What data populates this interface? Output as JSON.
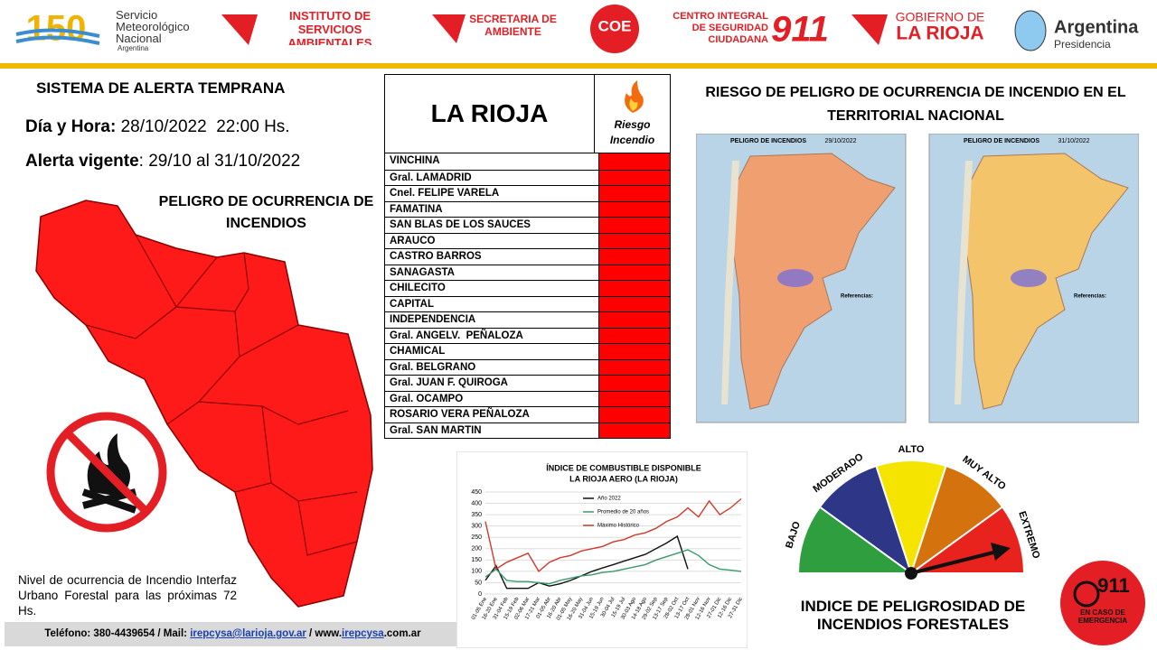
{
  "header": {
    "smn_number": "150",
    "smn_name": "Servicio Meteorológico Nacional",
    "smn_country": "Argentina",
    "isa": "INSTITUTO DE SERVICIOS AMBIENTALES",
    "secretaria": "SECRETARIA DE AMBIENTE",
    "coe": "COE",
    "centro": "CENTRO INTEGRAL DE SEGURIDAD CIUDADANA",
    "centro_number": "911",
    "gobierno": "GOBIERNO DE",
    "gobierno_province": "LA RIOJA",
    "presidencia_country": "Argentina",
    "presidencia": "Presidencia"
  },
  "alert": {
    "title": "SISTEMA DE ALERTA TEMPRANA",
    "date_label": "Día y Hora:",
    "date_value": "28/10/2022  22:00 Hs.",
    "validity_label": "Alerta vigente",
    "validity_value": ": 29/10 al 31/10/2022",
    "danger_title": "PELIGRO DE OCURRENCIA DE INCENDIOS",
    "note": "Nivel de ocurrencia de Incendio Interfaz Urbano Forestal para las próximas 72 Hs."
  },
  "table": {
    "title": "LA RIOJA",
    "risk_header": "Riesgo Incendio",
    "risk_color": "#ff0000",
    "departments": [
      "VINCHINA",
      "Gral. LAMADRID",
      "Cnel. FELIPE VARELA",
      "FAMATINA",
      "SAN BLAS DE LOS SAUCES",
      "ARAUCO",
      "CASTRO BARROS",
      "SANAGASTA",
      "CHILECITO",
      "CAPITAL",
      "INDEPENDENCIA",
      "Gral. ANGELV.  PEÑALOZA",
      "CHAMICAL",
      "Gral. BELGRANO",
      "Gral. JUAN F. QUIROGA",
      "Gral. OCAMPO",
      "ROSARIO VERA PEÑALOZA",
      "Gral. SAN MARTIN"
    ]
  },
  "maps": {
    "title": "RIESGO DE PELIGRO DE OCURRENCIA DE INCENDIO EN EL TERRITORIAL NACIONAL",
    "panels": [
      {
        "title": "PELIGRO DE INCENDIOS",
        "date": "29/10/2022",
        "legend": "Referencias:"
      },
      {
        "title": "PELIGRO DE INCENDIOS",
        "date": "31/10/2022",
        "legend": "Referencias:"
      }
    ]
  },
  "chart_data": {
    "type": "line",
    "title": "ÍNDICE DE COMBUSTIBLE DISPONIBLE",
    "subtitle": "LA RIOJA AERO (LA RIOJA)",
    "categories": [
      "01-05 Ene",
      "16-20 Ene",
      "31-04 Feb",
      "15-19 Feb",
      "02-06 Mar",
      "17-21 Mar",
      "01-05 Abr",
      "16-20 Abr",
      "01-05 May",
      "16-20 May",
      "31-04 Jun",
      "15-19 Jun",
      "30-04 Jul",
      "15-19 Jul",
      "30-03 Ago",
      "14-18 Ago",
      "29-02 Sep",
      "13-17 Sep",
      "28-02 Oct",
      "13-17 Oct",
      "28-01 Nov",
      "12-16 Nov",
      "27-01 Dic",
      "12-16 Dic",
      "27-31 Dic"
    ],
    "series": [
      {
        "name": "Año 2022",
        "color": "#111111",
        "values": [
          60,
          125,
          25,
          25,
          25,
          50,
          35,
          45,
          60,
          80,
          100,
          115,
          130,
          145,
          160,
          175,
          200,
          225,
          255,
          110,
          null,
          null,
          null,
          null,
          null
        ]
      },
      {
        "name": "Promedio de 20 años",
        "color": "#3a9a6a",
        "values": [
          75,
          110,
          60,
          55,
          55,
          50,
          45,
          60,
          70,
          80,
          85,
          95,
          100,
          110,
          120,
          130,
          150,
          165,
          180,
          195,
          170,
          130,
          110,
          105,
          100
        ]
      },
      {
        "name": "Máximo Histórico",
        "color": "#d03a2a",
        "values": [
          320,
          110,
          140,
          160,
          180,
          100,
          140,
          160,
          170,
          190,
          200,
          210,
          230,
          240,
          260,
          270,
          290,
          320,
          340,
          380,
          340,
          410,
          350,
          380,
          420
        ]
      }
    ],
    "ylim": [
      0,
      450
    ],
    "yticks": [
      0,
      50,
      100,
      150,
      200,
      250,
      300,
      350,
      400,
      450
    ],
    "grid": true
  },
  "gauge": {
    "levels": [
      {
        "label": "BAJO",
        "color": "#2e9e3e"
      },
      {
        "label": "MODERADO",
        "color": "#2e3688"
      },
      {
        "label": "ALTO",
        "color": "#f4e400"
      },
      {
        "label": "MUY ALTO",
        "color": "#d4720e"
      },
      {
        "label": "EXTREMO",
        "color": "#e8221c"
      }
    ],
    "title": "INDICE DE PELIGROSIDAD DE INCENDIOS FORESTALES"
  },
  "badge": {
    "number": "911",
    "text": "EN CASO DE EMERGENCIA"
  },
  "footer": {
    "phone": "Teléfono:  380-4439654",
    "mail_label": " / Mail: ",
    "mail": "irepcysa@larioja.gov.ar",
    "web_label": " / www.",
    "web": "irepcysa",
    ".web_suffix": "",
    "web_suffix": ".com.ar"
  }
}
